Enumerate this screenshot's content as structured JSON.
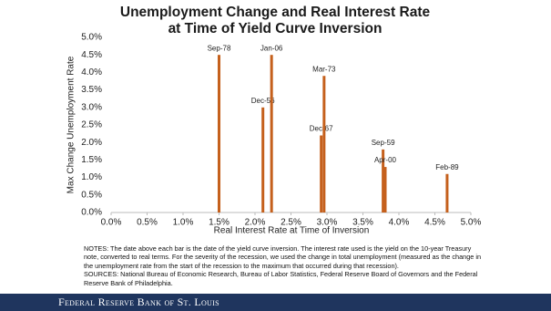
{
  "chart_data": {
    "type": "bar",
    "title": [
      "Unemployment Change and Real Interest Rate",
      "at Time of Yield Curve Inversion"
    ],
    "x_label": "Real Interest Rate at Time of Inversion",
    "y_label": "Max Change Unemployment Rate",
    "labels": [
      "Sep-78",
      "Dec-56",
      "Jan-06",
      "Dec-67",
      "Mar-73",
      "Sep-59",
      "Apr-00",
      "Feb-89"
    ],
    "x": [
      1.5,
      2.11,
      2.23,
      2.92,
      2.96,
      3.78,
      3.81,
      4.67
    ],
    "values": [
      4.5,
      3.0,
      4.5,
      2.2,
      3.9,
      1.8,
      1.3,
      1.1
    ],
    "color": "#c5601c",
    "xlim": [
      0,
      5
    ],
    "xticks": [
      {
        "value": 0,
        "label": "0.0%"
      },
      {
        "value": 0.5,
        "label": "0.5%"
      },
      {
        "value": 1,
        "label": "1.0%"
      },
      {
        "value": 1.5,
        "label": "1.5%"
      },
      {
        "value": 2,
        "label": "2.0%"
      },
      {
        "value": 2.5,
        "label": "2.5%"
      },
      {
        "value": 3,
        "label": "3.0%"
      },
      {
        "value": 3.5,
        "label": "3.5%"
      },
      {
        "value": 4,
        "label": "4.0%"
      },
      {
        "value": 4.5,
        "label": "4.5%"
      },
      {
        "value": 5,
        "label": "5.0%"
      }
    ],
    "ylim": [
      0,
      5
    ],
    "yticks": [
      {
        "value": 0,
        "label": "0.0%"
      },
      {
        "value": 0.5,
        "label": "0.5%"
      },
      {
        "value": 1,
        "label": "1.0%"
      },
      {
        "value": 1.5,
        "label": "1.5%"
      },
      {
        "value": 2,
        "label": "2.0%"
      },
      {
        "value": 2.5,
        "label": "2.5%"
      },
      {
        "value": 3,
        "label": "3.0%"
      },
      {
        "value": 3.5,
        "label": "3.5%"
      },
      {
        "value": 4,
        "label": "4.0%"
      },
      {
        "value": 4.5,
        "label": "4.5%"
      },
      {
        "value": 5,
        "label": "5.0%"
      }
    ],
    "grid": false,
    "notes": "NOTES: The date above each bar is the date of the yield curve inversion. The interest rate used is the yield on the 10-year Treasury note, converted to real terms. For the severity of the recession, we used the change in total unemployment (measured as the change in the unemployment rate from the start of the recession to the maximum that occurred during that recession).",
    "sources": "SOURCES: National Bureau of Economic Research, Bureau of Labor Statistics, Federal Reserve Board of Governors and the Federal Reserve Bank of Philadelphia.",
    "footer": "Federal Reserve Bank of St. Louis"
  }
}
